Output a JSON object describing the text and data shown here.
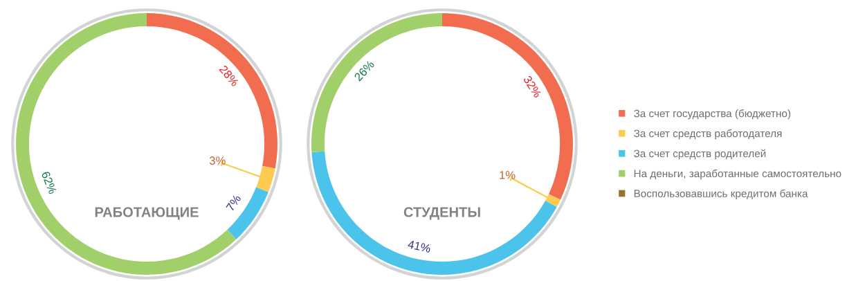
{
  "chart_data": [
    {
      "type": "donut",
      "title": "РАБОТАЮЩИЕ",
      "categories": [
        "За счет государства (бюджетно)",
        "За счет средств работодателя",
        "За счет средств родителей",
        "На деньги, заработанные самостоятельно",
        "Воспользовавшись кредитом банка"
      ],
      "values": [
        28,
        3,
        7,
        62,
        0
      ],
      "colors": [
        "#f26d50",
        "#fecb52",
        "#4cc3ea",
        "#a1cf69",
        "#99722f"
      ],
      "value_labels": [
        "28%",
        "3%",
        "7%",
        "62%",
        null
      ],
      "legend": "right"
    },
    {
      "type": "donut",
      "title": "СТУДЕНТЫ",
      "categories": [
        null,
        null,
        null,
        null,
        null
      ],
      "values": [
        32,
        1,
        41,
        26,
        0
      ],
      "colors": [
        "#f26d50",
        "#fecb52",
        "#4cc3ea",
        "#a1cf69",
        "#99722f"
      ],
      "value_labels": [
        "32%",
        "1%",
        "41%",
        "26%",
        null
      ]
    }
  ]
}
